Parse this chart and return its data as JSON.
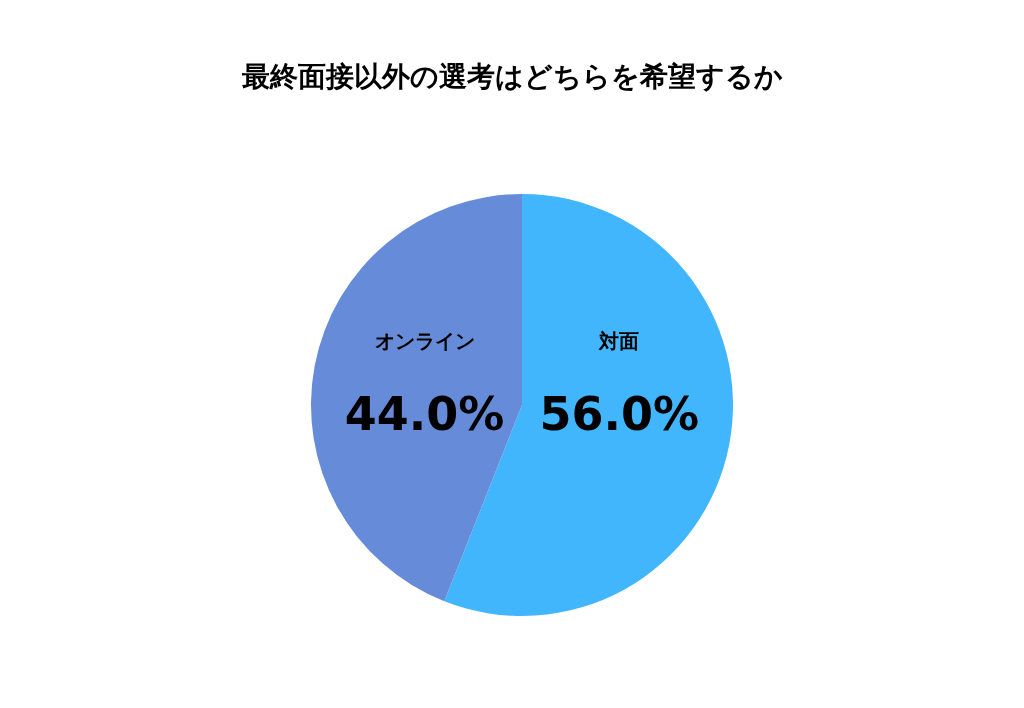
{
  "chart_data": {
    "type": "pie",
    "title": "最終面接以外の選考はどちらを希望するか",
    "categories": [
      "対面",
      "オンライン"
    ],
    "values": [
      56.0,
      44.0
    ],
    "colors": [
      "#42b6fc",
      "#668cd9"
    ],
    "value_labels": [
      "56.0%",
      "44.0%"
    ]
  }
}
